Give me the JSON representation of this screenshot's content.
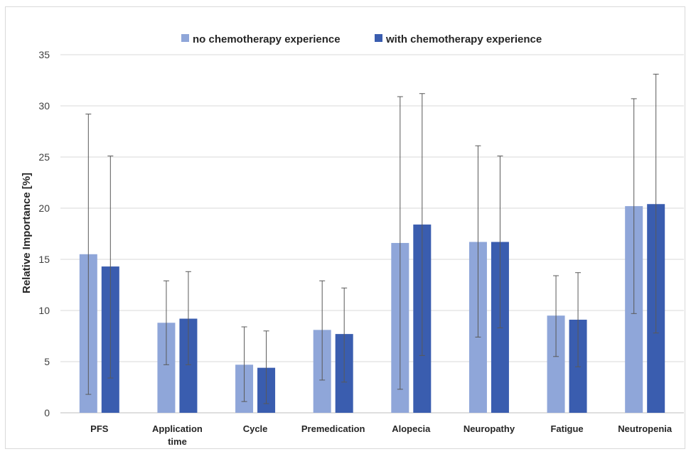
{
  "chart_data": {
    "type": "bar",
    "categories": [
      [
        "PFS"
      ],
      [
        "Application",
        "time"
      ],
      [
        "Cycle"
      ],
      [
        "Premedication"
      ],
      [
        "Alopecia"
      ],
      [
        "Neuropathy"
      ],
      [
        "Fatigue"
      ],
      [
        "Neutropenia"
      ]
    ],
    "series": [
      {
        "name": "no chemotherapy experience",
        "color": "#8fa6d9",
        "values": [
          15.5,
          8.8,
          4.7,
          8.1,
          16.6,
          16.7,
          9.5,
          20.2
        ],
        "error_low": [
          1.8,
          4.7,
          1.1,
          3.2,
          2.3,
          7.4,
          5.5,
          9.7
        ],
        "error_high": [
          29.2,
          12.9,
          8.4,
          12.9,
          30.9,
          26.1,
          13.4,
          30.7
        ]
      },
      {
        "name": "with chemotherapy experience",
        "color": "#3a5daf",
        "values": [
          14.3,
          9.2,
          4.4,
          7.7,
          18.4,
          16.7,
          9.1,
          20.4
        ],
        "error_low": [
          3.4,
          4.7,
          0.9,
          3.0,
          5.6,
          8.3,
          4.5,
          7.8
        ],
        "error_high": [
          25.1,
          13.8,
          8.0,
          12.2,
          31.2,
          25.1,
          13.7,
          33.1
        ]
      }
    ],
    "ylabel": "Relative Importance [%]",
    "ylim": [
      0,
      35
    ],
    "yticks": [
      0,
      5,
      10,
      15,
      20,
      25,
      30,
      35
    ],
    "grid": true,
    "legend_position": "top-center"
  }
}
